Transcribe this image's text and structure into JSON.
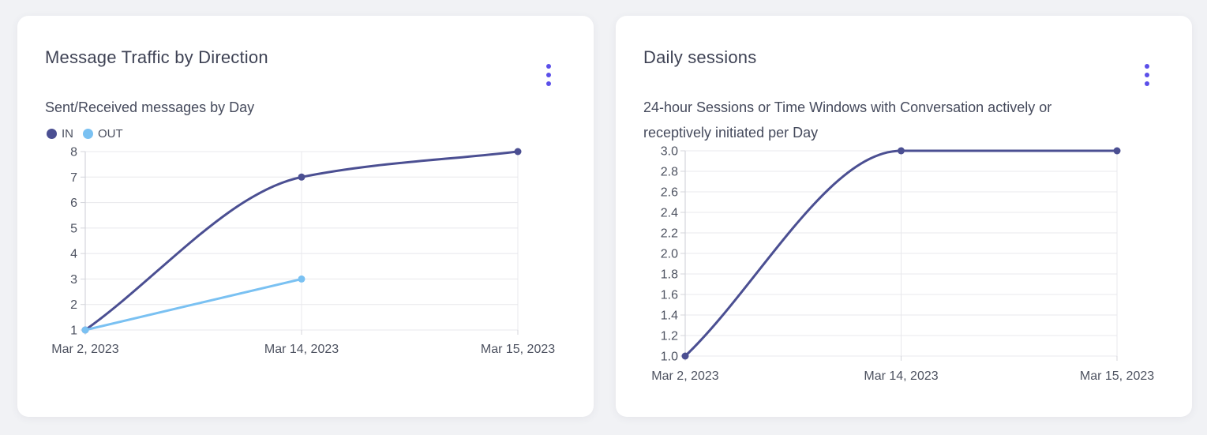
{
  "colors": {
    "accent": "#5B4FE9",
    "page_bg": "#F1F2F5",
    "card_bg": "#FFFFFF",
    "grid": "#E8E8EC",
    "axis_border": "#D4D5DB",
    "tick_text": "#4D5260",
    "series_in": "#4B4F92",
    "series_out": "#7AC1F2"
  },
  "cards": [
    {
      "title": "Message Traffic by Direction",
      "menu_icon": "kebab-vertical-icon",
      "subtitle_lines": [
        "Sent/Received messages by Day"
      ],
      "legend": [
        {
          "label": "IN",
          "color": "#4B4F92"
        },
        {
          "label": "OUT",
          "color": "#7AC1F2"
        }
      ]
    },
    {
      "title": "Daily sessions",
      "menu_icon": "kebab-vertical-icon",
      "subtitle_lines": [
        "24-hour Sessions or Time Windows with Conversation actively or",
        "receptively initiated per Day"
      ],
      "legend": []
    }
  ],
  "chart_data": [
    {
      "type": "line",
      "title": "Message Traffic by Direction",
      "subtitle": "Sent/Received messages by Day",
      "categories": [
        "Mar 2, 2023",
        "Mar 14, 2023",
        "Mar 15, 2023"
      ],
      "series": [
        {
          "name": "IN",
          "color": "#4B4F92",
          "values": [
            1,
            7,
            8
          ]
        },
        {
          "name": "OUT",
          "color": "#7AC1F2",
          "values": [
            1,
            3,
            null
          ]
        }
      ],
      "ylim": [
        1,
        8
      ],
      "y_ticks": [
        "8",
        "7",
        "6",
        "5",
        "4",
        "3",
        "2",
        "1"
      ],
      "grid": true,
      "legend_position": "top-left",
      "interpolation": "monotone"
    },
    {
      "type": "line",
      "title": "Daily sessions",
      "subtitle": "24-hour Sessions or Time Windows with Conversation actively or receptively initiated per Day",
      "categories": [
        "Mar 2, 2023",
        "Mar 14, 2023",
        "Mar 15, 2023"
      ],
      "series": [
        {
          "name": "Daily sessions",
          "color": "#4B4F92",
          "values": [
            1.0,
            3.0,
            3.0
          ]
        }
      ],
      "ylim": [
        1.0,
        3.0
      ],
      "y_ticks": [
        "3.0",
        "2.8",
        "2.6",
        "2.4",
        "2.2",
        "2.0",
        "1.8",
        "1.6",
        "1.4",
        "1.2",
        "1.0"
      ],
      "grid": true,
      "legend_position": "none",
      "interpolation": "monotone"
    }
  ]
}
